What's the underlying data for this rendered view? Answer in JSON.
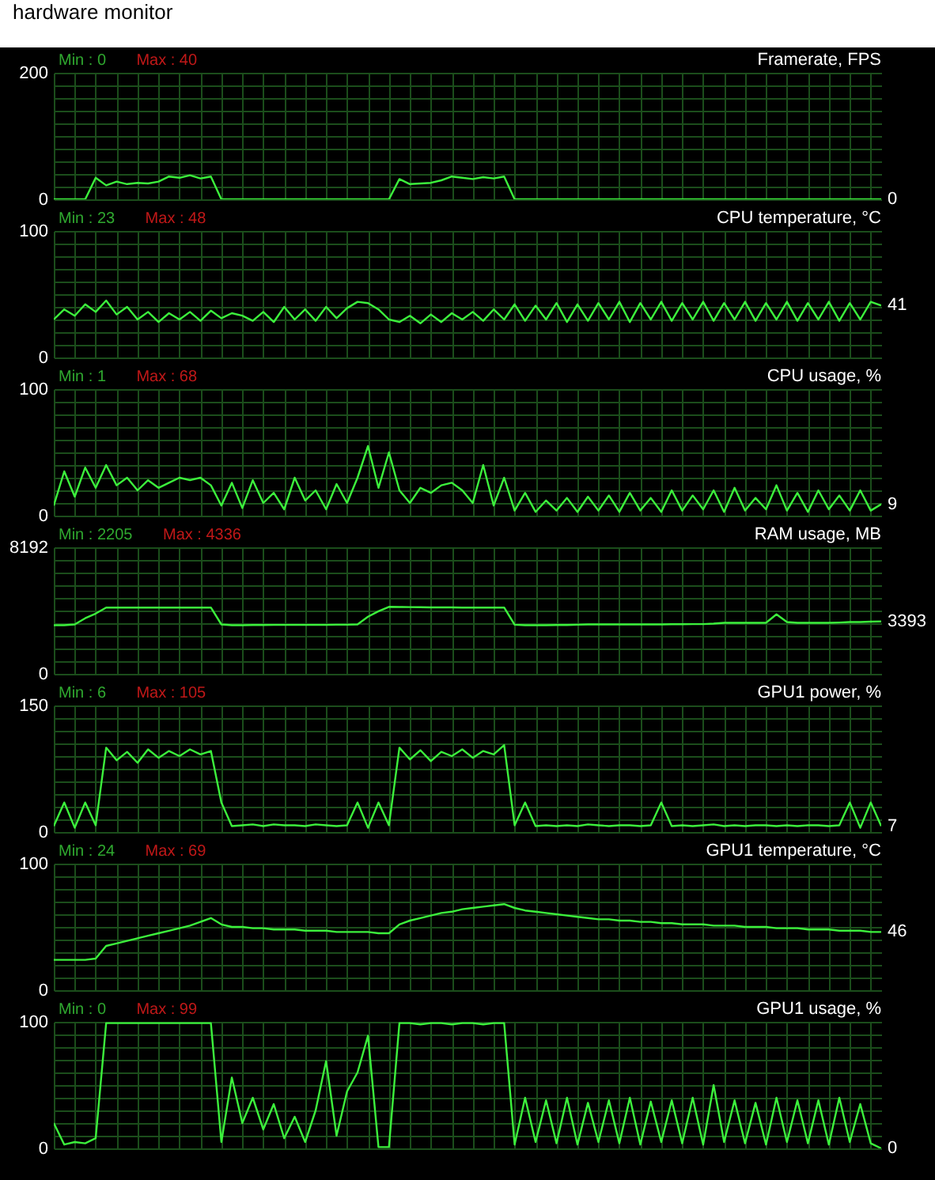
{
  "chart_data": [
    {
      "type": "line",
      "title": "hardware monitor",
      "annotations": [
        "Min : 0",
        "Max : 40"
      ],
      "categories": [
        null,
        null,
        null,
        null,
        null,
        null,
        null,
        null,
        null,
        null,
        null,
        null,
        null,
        null,
        null,
        null,
        null,
        null,
        null,
        null,
        null,
        null,
        null,
        null,
        null,
        null,
        null,
        null,
        null,
        null,
        null,
        null,
        null,
        null,
        null,
        null,
        null,
        null,
        null,
        null,
        null,
        null,
        null,
        null,
        null,
        null,
        null,
        null,
        null,
        null,
        null,
        null,
        null,
        null,
        null,
        null,
        null,
        null,
        null,
        null,
        null,
        null,
        null,
        null,
        null,
        null,
        null,
        null,
        null,
        null,
        null,
        null,
        null,
        null,
        null,
        null,
        null,
        null,
        null,
        null
      ],
      "ylim": [
        0,
        200
      ],
      "yticks": [
        0,
        {
          "value": 20,
          "label": null
        },
        {
          "value": 40,
          "label": null
        },
        {
          "value": 60,
          "label": null
        },
        {
          "value": 80,
          "label": null
        },
        {
          "value": 100,
          "label": null
        },
        {
          "value": 120,
          "label": null
        },
        {
          "value": 140,
          "label": null
        },
        {
          "value": 160,
          "label": null
        },
        {
          "value": 180,
          "label": null
        },
        200
      ],
      "grid": true,
      "tick_labels": "y",
      "series": [
        {
          "name": "Framerate, FPS",
          "color": "#3cf03c",
          "values": [
            0,
            0,
            0,
            0,
            34,
            22,
            28,
            24,
            26,
            25,
            28,
            36,
            34,
            38,
            33,
            36,
            0,
            0,
            0,
            0,
            0,
            0,
            0,
            0,
            0,
            0,
            0,
            0,
            0,
            0,
            0,
            0,
            0,
            32,
            24,
            25,
            26,
            30,
            36,
            34,
            32,
            35,
            33,
            36,
            0,
            0,
            0,
            0,
            0,
            0,
            0,
            0,
            0,
            0,
            0,
            0,
            0,
            0,
            0,
            0,
            0,
            0,
            0,
            0,
            0,
            0,
            0,
            0,
            0,
            0,
            0,
            0,
            0,
            0,
            0,
            0,
            0,
            0,
            0,
            0
          ],
          "value_labels": [
            null,
            null,
            null,
            null,
            null,
            null,
            null,
            null,
            null,
            null,
            null,
            null,
            null,
            null,
            null,
            null,
            null,
            null,
            null,
            null,
            null,
            null,
            null,
            null,
            null,
            null,
            null,
            null,
            null,
            null,
            null,
            null,
            null,
            null,
            null,
            null,
            null,
            null,
            null,
            null,
            null,
            null,
            null,
            null,
            null,
            null,
            null,
            null,
            null,
            null,
            null,
            null,
            null,
            null,
            null,
            null,
            null,
            null,
            null,
            null,
            null,
            null,
            null,
            null,
            null,
            null,
            null,
            null,
            null,
            null,
            null,
            null,
            null,
            null,
            null,
            null,
            null,
            null,
            null,
            "0"
          ]
        }
      ]
    },
    {
      "type": "line",
      "annotations": [
        "Min : 23",
        "Max : 48"
      ],
      "categories": [
        null,
        null,
        null,
        null,
        null,
        null,
        null,
        null,
        null,
        null,
        null,
        null,
        null,
        null,
        null,
        null,
        null,
        null,
        null,
        null,
        null,
        null,
        null,
        null,
        null,
        null,
        null,
        null,
        null,
        null,
        null,
        null,
        null,
        null,
        null,
        null,
        null,
        null,
        null,
        null,
        null,
        null,
        null,
        null,
        null,
        null,
        null,
        null,
        null,
        null,
        null,
        null,
        null,
        null,
        null,
        null,
        null,
        null,
        null,
        null,
        null,
        null,
        null,
        null,
        null,
        null,
        null,
        null,
        null,
        null,
        null,
        null,
        null,
        null,
        null,
        null,
        null,
        null,
        null,
        null
      ],
      "ylim": [
        0,
        100
      ],
      "yticks": [
        0,
        {
          "value": 10,
          "label": null
        },
        {
          "value": 20,
          "label": null
        },
        {
          "value": 30,
          "label": null
        },
        {
          "value": 40,
          "label": null
        },
        {
          "value": 50,
          "label": null
        },
        {
          "value": 60,
          "label": null
        },
        {
          "value": 70,
          "label": null
        },
        {
          "value": 80,
          "label": null
        },
        {
          "value": 90,
          "label": null
        },
        100
      ],
      "grid": true,
      "tick_labels": "y",
      "series": [
        {
          "name": "CPU temperature, °C",
          "color": "#3cf03c",
          "values": [
            30,
            38,
            33,
            42,
            36,
            45,
            34,
            40,
            30,
            36,
            28,
            35,
            30,
            36,
            29,
            37,
            31,
            35,
            33,
            29,
            36,
            28,
            40,
            30,
            38,
            29,
            40,
            31,
            39,
            44,
            43,
            38,
            30,
            28,
            33,
            27,
            34,
            28,
            35,
            30,
            36,
            29,
            38,
            30,
            42,
            29,
            41,
            30,
            43,
            28,
            42,
            29,
            43,
            30,
            44,
            28,
            43,
            30,
            44,
            29,
            43,
            30,
            44,
            29,
            43,
            30,
            44,
            29,
            43,
            30,
            44,
            29,
            43,
            30,
            44,
            29,
            43,
            30,
            44,
            41
          ],
          "value_labels": [
            null,
            null,
            null,
            null,
            null,
            null,
            null,
            null,
            null,
            null,
            null,
            null,
            null,
            null,
            null,
            null,
            null,
            null,
            null,
            null,
            null,
            null,
            null,
            null,
            null,
            null,
            null,
            null,
            null,
            null,
            null,
            null,
            null,
            null,
            null,
            null,
            null,
            null,
            null,
            null,
            null,
            null,
            null,
            null,
            null,
            null,
            null,
            null,
            null,
            null,
            null,
            null,
            null,
            null,
            null,
            null,
            null,
            null,
            null,
            null,
            null,
            null,
            null,
            null,
            null,
            null,
            null,
            null,
            null,
            null,
            null,
            null,
            null,
            null,
            null,
            null,
            null,
            null,
            null,
            "41"
          ]
        }
      ]
    },
    {
      "type": "line",
      "annotations": [
        "Min : 1",
        "Max : 68"
      ],
      "categories": [
        null,
        null,
        null,
        null,
        null,
        null,
        null,
        null,
        null,
        null,
        null,
        null,
        null,
        null,
        null,
        null,
        null,
        null,
        null,
        null,
        null,
        null,
        null,
        null,
        null,
        null,
        null,
        null,
        null,
        null,
        null,
        null,
        null,
        null,
        null,
        null,
        null,
        null,
        null,
        null,
        null,
        null,
        null,
        null,
        null,
        null,
        null,
        null,
        null,
        null,
        null,
        null,
        null,
        null,
        null,
        null,
        null,
        null,
        null,
        null,
        null,
        null,
        null,
        null,
        null,
        null,
        null,
        null,
        null,
        null,
        null,
        null,
        null,
        null,
        null,
        null,
        null,
        null,
        null,
        null
      ],
      "ylim": [
        0,
        100
      ],
      "yticks": [
        0,
        {
          "value": 10,
          "label": null
        },
        {
          "value": 20,
          "label": null
        },
        {
          "value": 30,
          "label": null
        },
        {
          "value": 40,
          "label": null
        },
        {
          "value": 50,
          "label": null
        },
        {
          "value": 60,
          "label": null
        },
        {
          "value": 70,
          "label": null
        },
        {
          "value": 80,
          "label": null
        },
        {
          "value": 90,
          "label": null
        },
        100
      ],
      "grid": true,
      "tick_labels": "y",
      "series": [
        {
          "name": "CPU usage, %",
          "color": "#3cf03c",
          "values": [
            8,
            35,
            15,
            38,
            22,
            40,
            24,
            30,
            20,
            28,
            22,
            26,
            30,
            28,
            30,
            24,
            8,
            26,
            6,
            28,
            10,
            18,
            5,
            30,
            12,
            20,
            5,
            25,
            10,
            30,
            55,
            22,
            50,
            20,
            10,
            22,
            18,
            24,
            26,
            20,
            10,
            40,
            8,
            30,
            4,
            18,
            3,
            12,
            4,
            14,
            3,
            15,
            4,
            16,
            3,
            18,
            4,
            14,
            3,
            20,
            4,
            16,
            5,
            20,
            3,
            22,
            4,
            14,
            5,
            24,
            4,
            18,
            3,
            20,
            5,
            16,
            4,
            20,
            4,
            9
          ],
          "value_labels": [
            null,
            null,
            null,
            null,
            null,
            null,
            null,
            null,
            null,
            null,
            null,
            null,
            null,
            null,
            null,
            null,
            null,
            null,
            null,
            null,
            null,
            null,
            null,
            null,
            null,
            null,
            null,
            null,
            null,
            null,
            null,
            null,
            null,
            null,
            null,
            null,
            null,
            null,
            null,
            null,
            null,
            null,
            null,
            null,
            null,
            null,
            null,
            null,
            null,
            null,
            null,
            null,
            null,
            null,
            null,
            null,
            null,
            null,
            null,
            null,
            null,
            null,
            null,
            null,
            null,
            null,
            null,
            null,
            null,
            null,
            null,
            null,
            null,
            null,
            null,
            null,
            null,
            null,
            null,
            "9"
          ]
        }
      ]
    },
    {
      "type": "line",
      "annotations": [
        "Min : 2205",
        "Max : 4336"
      ],
      "categories": [
        null,
        null,
        null,
        null,
        null,
        null,
        null,
        null,
        null,
        null,
        null,
        null,
        null,
        null,
        null,
        null,
        null,
        null,
        null,
        null,
        null,
        null,
        null,
        null,
        null,
        null,
        null,
        null,
        null,
        null,
        null,
        null,
        null,
        null,
        null,
        null,
        null,
        null,
        null,
        null,
        null,
        null,
        null,
        null,
        null,
        null,
        null,
        null,
        null,
        null,
        null,
        null,
        null,
        null,
        null,
        null,
        null,
        null,
        null,
        null,
        null,
        null,
        null,
        null,
        null,
        null,
        null,
        null,
        null,
        null,
        null,
        null,
        null,
        null,
        null,
        null,
        null,
        null,
        null,
        null
      ],
      "ylim": [
        0,
        8192
      ],
      "yticks": [
        0,
        {
          "value": 819.2,
          "label": null
        },
        {
          "value": 1638.4,
          "label": null
        },
        {
          "value": 2457.6,
          "label": null
        },
        {
          "value": 3276.8,
          "label": null
        },
        {
          "value": 4096,
          "label": null
        },
        {
          "value": 4915.2,
          "label": null
        },
        {
          "value": 5734.4,
          "label": null
        },
        {
          "value": 6553.6,
          "label": null
        },
        {
          "value": 7372.8,
          "label": null
        },
        8192
      ],
      "grid": true,
      "tick_labels": "y",
      "series": [
        {
          "name": "RAM usage, MB",
          "color": "#3cf03c",
          "values": [
            3150,
            3150,
            3200,
            3600,
            3900,
            4290,
            4290,
            4290,
            4290,
            4290,
            4290,
            4290,
            4290,
            4290,
            4290,
            4290,
            3200,
            3150,
            3150,
            3160,
            3160,
            3170,
            3170,
            3170,
            3170,
            3170,
            3170,
            3180,
            3180,
            3200,
            3700,
            4050,
            4336,
            4330,
            4320,
            4310,
            4300,
            4300,
            4300,
            4290,
            4290,
            4290,
            4290,
            4290,
            3180,
            3150,
            3150,
            3150,
            3160,
            3160,
            3180,
            3200,
            3200,
            3200,
            3200,
            3200,
            3200,
            3200,
            3200,
            3210,
            3210,
            3220,
            3220,
            3250,
            3300,
            3300,
            3300,
            3300,
            3300,
            3850,
            3350,
            3300,
            3300,
            3300,
            3300,
            3320,
            3350,
            3350,
            3380,
            3393
          ],
          "value_labels": [
            null,
            null,
            null,
            null,
            null,
            null,
            null,
            null,
            null,
            null,
            null,
            null,
            null,
            null,
            null,
            null,
            null,
            null,
            null,
            null,
            null,
            null,
            null,
            null,
            null,
            null,
            null,
            null,
            null,
            null,
            null,
            null,
            null,
            null,
            null,
            null,
            null,
            null,
            null,
            null,
            null,
            null,
            null,
            null,
            null,
            null,
            null,
            null,
            null,
            null,
            null,
            null,
            null,
            null,
            null,
            null,
            null,
            null,
            null,
            null,
            null,
            null,
            null,
            null,
            null,
            null,
            null,
            null,
            null,
            null,
            null,
            null,
            null,
            null,
            null,
            null,
            null,
            null,
            null,
            "3393"
          ]
        }
      ]
    },
    {
      "type": "line",
      "annotations": [
        "Min : 6",
        "Max : 105"
      ],
      "categories": [
        null,
        null,
        null,
        null,
        null,
        null,
        null,
        null,
        null,
        null,
        null,
        null,
        null,
        null,
        null,
        null,
        null,
        null,
        null,
        null,
        null,
        null,
        null,
        null,
        null,
        null,
        null,
        null,
        null,
        null,
        null,
        null,
        null,
        null,
        null,
        null,
        null,
        null,
        null,
        null,
        null,
        null,
        null,
        null,
        null,
        null,
        null,
        null,
        null,
        null,
        null,
        null,
        null,
        null,
        null,
        null,
        null,
        null,
        null,
        null,
        null,
        null,
        null,
        null,
        null,
        null,
        null,
        null,
        null,
        null,
        null,
        null,
        null,
        null,
        null,
        null,
        null,
        null,
        null,
        null
      ],
      "ylim": [
        0,
        150
      ],
      "yticks": [
        0,
        {
          "value": 15,
          "label": null
        },
        {
          "value": 30,
          "label": null
        },
        {
          "value": 45,
          "label": null
        },
        {
          "value": 60,
          "label": null
        },
        {
          "value": 75,
          "label": null
        },
        {
          "value": 90,
          "label": null
        },
        {
          "value": 105,
          "label": null
        },
        {
          "value": 120,
          "label": null
        },
        {
          "value": 135,
          "label": null
        },
        150
      ],
      "grid": true,
      "tick_labels": "y",
      "series": [
        {
          "name": "GPU1 power, %",
          "color": "#3cf03c",
          "values": [
            7,
            35,
            5,
            35,
            8,
            100,
            85,
            95,
            82,
            98,
            88,
            96,
            90,
            98,
            92,
            96,
            35,
            7,
            8,
            9,
            7,
            9,
            8,
            8,
            7,
            9,
            8,
            7,
            8,
            35,
            5,
            35,
            8,
            100,
            86,
            97,
            84,
            95,
            90,
            98,
            88,
            96,
            92,
            103,
            8,
            35,
            7,
            8,
            7,
            8,
            7,
            9,
            8,
            7,
            8,
            8,
            7,
            8,
            35,
            7,
            8,
            7,
            8,
            9,
            7,
            8,
            7,
            8,
            8,
            7,
            8,
            7,
            8,
            8,
            7,
            8,
            35,
            5,
            35,
            7
          ],
          "value_labels": [
            null,
            null,
            null,
            null,
            null,
            null,
            null,
            null,
            null,
            null,
            null,
            null,
            null,
            null,
            null,
            null,
            null,
            null,
            null,
            null,
            null,
            null,
            null,
            null,
            null,
            null,
            null,
            null,
            null,
            null,
            null,
            null,
            null,
            null,
            null,
            null,
            null,
            null,
            null,
            null,
            null,
            null,
            null,
            null,
            null,
            null,
            null,
            null,
            null,
            null,
            null,
            null,
            null,
            null,
            null,
            null,
            null,
            null,
            null,
            null,
            null,
            null,
            null,
            null,
            null,
            null,
            null,
            null,
            null,
            null,
            null,
            null,
            null,
            null,
            null,
            null,
            null,
            null,
            null,
            "7"
          ]
        }
      ]
    },
    {
      "type": "line",
      "annotations": [
        "Min : 24",
        "Max : 69"
      ],
      "categories": [
        null,
        null,
        null,
        null,
        null,
        null,
        null,
        null,
        null,
        null,
        null,
        null,
        null,
        null,
        null,
        null,
        null,
        null,
        null,
        null,
        null,
        null,
        null,
        null,
        null,
        null,
        null,
        null,
        null,
        null,
        null,
        null,
        null,
        null,
        null,
        null,
        null,
        null,
        null,
        null,
        null,
        null,
        null,
        null,
        null,
        null,
        null,
        null,
        null,
        null,
        null,
        null,
        null,
        null,
        null,
        null,
        null,
        null,
        null,
        null,
        null,
        null,
        null,
        null,
        null,
        null,
        null,
        null,
        null,
        null,
        null,
        null,
        null,
        null,
        null,
        null,
        null,
        null,
        null,
        null
      ],
      "ylim": [
        0,
        100
      ],
      "yticks": [
        0,
        {
          "value": 10,
          "label": null
        },
        {
          "value": 20,
          "label": null
        },
        {
          "value": 30,
          "label": null
        },
        {
          "value": 40,
          "label": null
        },
        {
          "value": 50,
          "label": null
        },
        {
          "value": 60,
          "label": null
        },
        {
          "value": 70,
          "label": null
        },
        {
          "value": 80,
          "label": null
        },
        {
          "value": 90,
          "label": null
        },
        100
      ],
      "grid": true,
      "tick_labels": "y",
      "series": [
        {
          "name": "GPU1 temperature, °C",
          "color": "#3cf03c",
          "values": [
            24,
            24,
            24,
            24,
            25,
            35,
            37,
            39,
            41,
            43,
            45,
            47,
            49,
            51,
            54,
            57,
            52,
            50,
            50,
            49,
            49,
            48,
            48,
            48,
            47,
            47,
            47,
            46,
            46,
            46,
            46,
            45,
            45,
            52,
            55,
            57,
            59,
            61,
            62,
            64,
            65,
            66,
            67,
            68,
            65,
            63,
            62,
            61,
            60,
            59,
            58,
            57,
            56,
            56,
            55,
            55,
            54,
            54,
            53,
            53,
            52,
            52,
            52,
            51,
            51,
            51,
            50,
            50,
            50,
            49,
            49,
            49,
            48,
            48,
            48,
            47,
            47,
            47,
            46,
            46
          ],
          "value_labels": [
            null,
            null,
            null,
            null,
            null,
            null,
            null,
            null,
            null,
            null,
            null,
            null,
            null,
            null,
            null,
            null,
            null,
            null,
            null,
            null,
            null,
            null,
            null,
            null,
            null,
            null,
            null,
            null,
            null,
            null,
            null,
            null,
            null,
            null,
            null,
            null,
            null,
            null,
            null,
            null,
            null,
            null,
            null,
            null,
            null,
            null,
            null,
            null,
            null,
            null,
            null,
            null,
            null,
            null,
            null,
            null,
            null,
            null,
            null,
            null,
            null,
            null,
            null,
            null,
            null,
            null,
            null,
            null,
            null,
            null,
            null,
            null,
            null,
            null,
            null,
            null,
            null,
            null,
            null,
            "46"
          ]
        }
      ]
    },
    {
      "type": "line",
      "annotations": [
        "Min : 0",
        "Max : 99"
      ],
      "categories": [
        null,
        null,
        null,
        null,
        null,
        null,
        null,
        null,
        null,
        null,
        null,
        null,
        null,
        null,
        null,
        null,
        null,
        null,
        null,
        null,
        null,
        null,
        null,
        null,
        null,
        null,
        null,
        null,
        null,
        null,
        null,
        null,
        null,
        null,
        null,
        null,
        null,
        null,
        null,
        null,
        null,
        null,
        null,
        null,
        null,
        null,
        null,
        null,
        null,
        null,
        null,
        null,
        null,
        null,
        null,
        null,
        null,
        null,
        null,
        null,
        null,
        null,
        null,
        null,
        null,
        null,
        null,
        null,
        null,
        null,
        null,
        null,
        null,
        null,
        null,
        null,
        null,
        null,
        null,
        null
      ],
      "ylim": [
        0,
        100
      ],
      "yticks": [
        0,
        {
          "value": 10,
          "label": null
        },
        {
          "value": 20,
          "label": null
        },
        {
          "value": 30,
          "label": null
        },
        {
          "value": 40,
          "label": null
        },
        {
          "value": 50,
          "label": null
        },
        {
          "value": 60,
          "label": null
        },
        {
          "value": 70,
          "label": null
        },
        {
          "value": 80,
          "label": null
        },
        {
          "value": 90,
          "label": null
        },
        100
      ],
      "grid": true,
      "tick_labels": "y",
      "series": [
        {
          "name": "GPU1 usage, %",
          "color": "#3cf03c",
          "values": [
            20,
            3,
            5,
            4,
            8,
            99,
            99,
            99,
            99,
            99,
            99,
            99,
            99,
            99,
            99,
            99,
            5,
            56,
            20,
            40,
            15,
            35,
            8,
            25,
            5,
            30,
            69,
            10,
            45,
            60,
            89,
            1,
            1,
            99,
            99,
            98,
            99,
            99,
            98,
            99,
            99,
            98,
            99,
            99,
            3,
            40,
            5,
            38,
            4,
            40,
            3,
            36,
            5,
            38,
            4,
            40,
            3,
            37,
            5,
            38,
            4,
            40,
            3,
            50,
            5,
            38,
            4,
            36,
            3,
            40,
            5,
            38,
            4,
            38,
            3,
            40,
            5,
            35,
            4,
            0
          ],
          "value_labels": [
            null,
            null,
            null,
            null,
            null,
            null,
            null,
            null,
            null,
            null,
            null,
            null,
            null,
            null,
            null,
            null,
            null,
            null,
            null,
            null,
            null,
            null,
            null,
            null,
            null,
            null,
            null,
            null,
            null,
            null,
            null,
            null,
            null,
            null,
            null,
            null,
            null,
            null,
            null,
            null,
            null,
            null,
            null,
            null,
            null,
            null,
            null,
            null,
            null,
            null,
            null,
            null,
            null,
            null,
            null,
            null,
            null,
            null,
            null,
            null,
            null,
            null,
            null,
            null,
            null,
            null,
            null,
            null,
            null,
            null,
            null,
            null,
            null,
            null,
            null,
            null,
            null,
            null,
            null,
            "0"
          ]
        }
      ]
    }
  ]
}
